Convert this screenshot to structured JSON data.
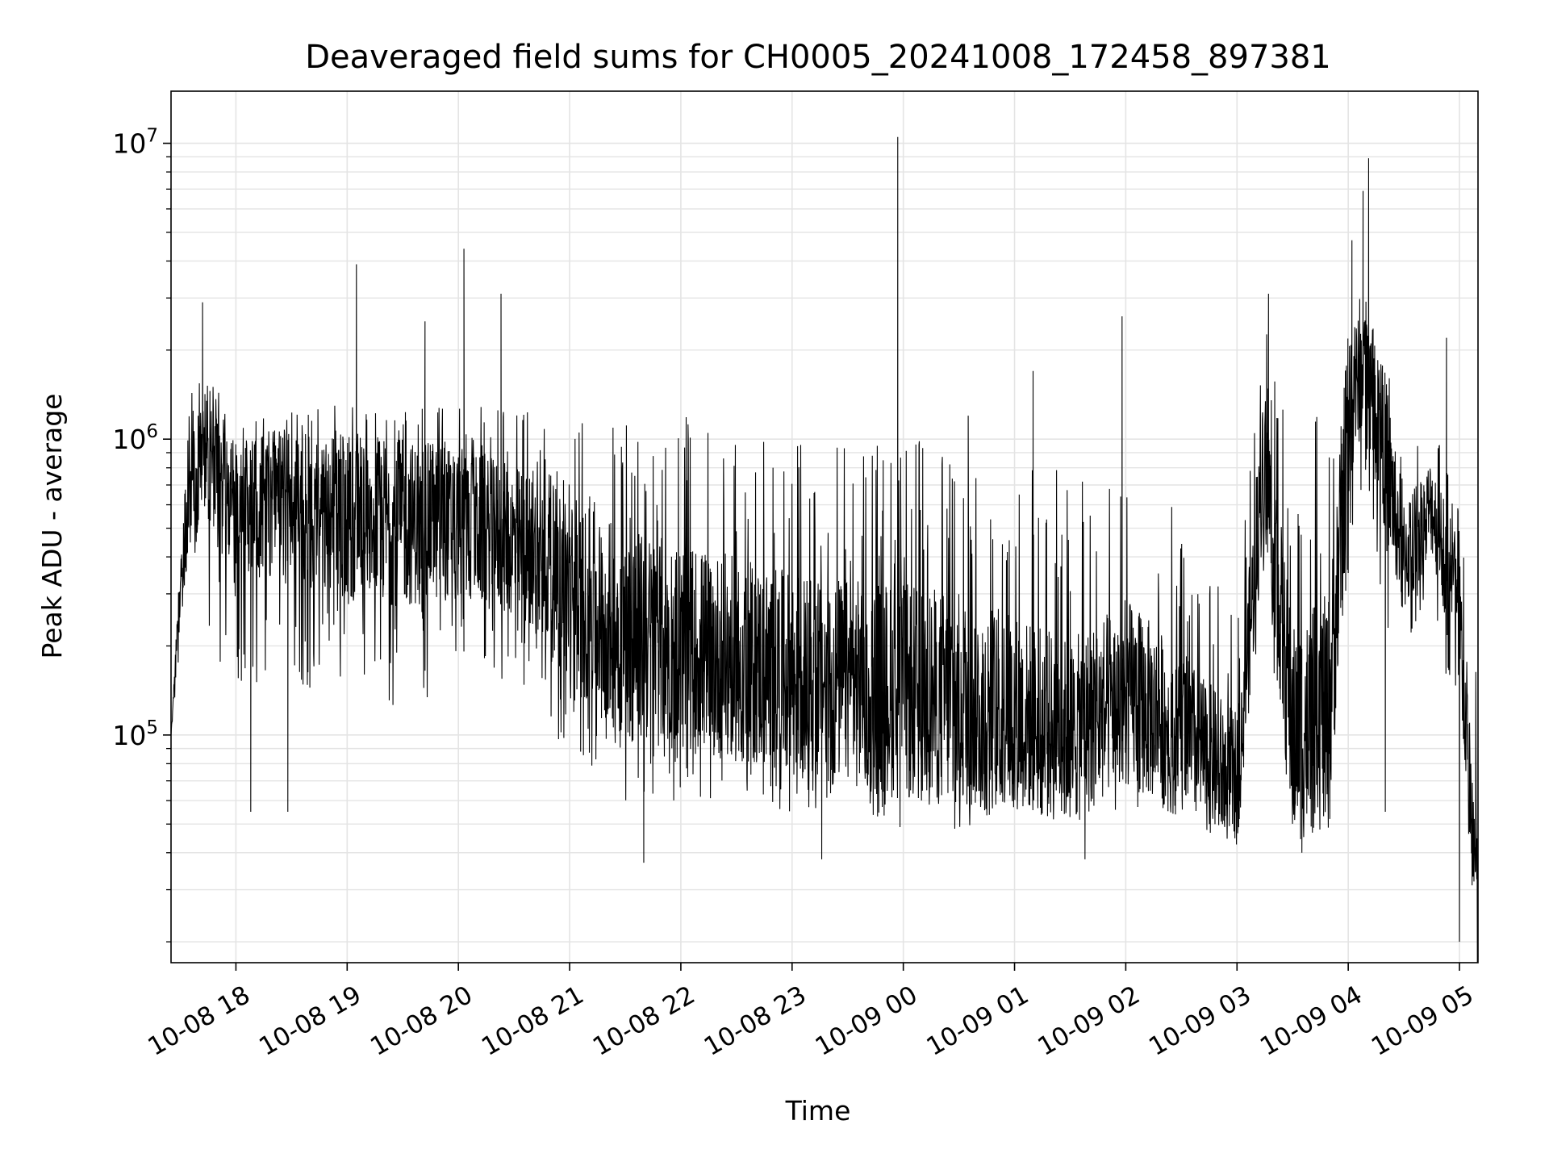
{
  "chart_data": {
    "type": "line",
    "title": "Deaveraged field sums for CH0005_20241008_172458_897381",
    "xlabel": "Time",
    "ylabel": "Peak ADU - average",
    "yscale": "log",
    "ylim": [
      17000,
      15000000
    ],
    "xlim": [
      "2024-10-08 17:25",
      "2024-10-09 05:10"
    ],
    "grid": true,
    "grid_minor": true,
    "line_color": "#000000",
    "x_ticks": [
      {
        "value": "2024-10-08 18:00",
        "label": "10-08 18"
      },
      {
        "value": "2024-10-08 19:00",
        "label": "10-08 19"
      },
      {
        "value": "2024-10-08 20:00",
        "label": "10-08 20"
      },
      {
        "value": "2024-10-08 21:00",
        "label": "10-08 21"
      },
      {
        "value": "2024-10-08 22:00",
        "label": "10-08 22"
      },
      {
        "value": "2024-10-08 23:00",
        "label": "10-08 23"
      },
      {
        "value": "2024-10-09 00:00",
        "label": "10-09 00"
      },
      {
        "value": "2024-10-09 01:00",
        "label": "10-09 01"
      },
      {
        "value": "2024-10-09 02:00",
        "label": "10-09 02"
      },
      {
        "value": "2024-10-09 03:00",
        "label": "10-09 03"
      },
      {
        "value": "2024-10-09 04:00",
        "label": "10-09 04"
      },
      {
        "value": "2024-10-09 05:00",
        "label": "10-09 05"
      }
    ],
    "y_ticks": [
      {
        "value": 100000,
        "base": "10",
        "exp": "5"
      },
      {
        "value": 1000000,
        "base": "10",
        "exp": "6"
      },
      {
        "value": 10000000,
        "base": "10",
        "exp": "7"
      }
    ],
    "series": [
      {
        "x": [
          "2024-10-08 17:25",
          "2024-10-08 17:30",
          "2024-10-08 17:35",
          "2024-10-08 17:40",
          "2024-10-08 17:45",
          "2024-10-08 18:00",
          "2024-10-08 18:15",
          "2024-10-08 18:30",
          "2024-10-08 19:00",
          "2024-10-08 19:30",
          "2024-10-08 20:00",
          "2024-10-08 20:30",
          "2024-10-08 20:45",
          "2024-10-08 21:00",
          "2024-10-08 21:30",
          "2024-10-08 22:00",
          "2024-10-08 22:30",
          "2024-10-08 23:00",
          "2024-10-08 23:30",
          "2024-10-08 23:58",
          "2024-10-09 00:30",
          "2024-10-09 01:00",
          "2024-10-09 01:30",
          "2024-10-09 02:00",
          "2024-10-09 02:30",
          "2024-10-09 03:00",
          "2024-10-09 03:15",
          "2024-10-09 03:30",
          "2024-10-09 03:50",
          "2024-10-09 04:00",
          "2024-10-09 04:10",
          "2024-10-09 04:20",
          "2024-10-09 04:30",
          "2024-10-09 04:45",
          "2024-10-09 05:00",
          "2024-10-09 05:10"
        ],
        "values": [
          100000,
          300000,
          600000,
          800000,
          900000,
          550000,
          600000,
          600000,
          550000,
          520000,
          520000,
          450000,
          400000,
          300000,
          220000,
          200000,
          180000,
          160000,
          150000,
          140000,
          130000,
          120000,
          100000,
          140000,
          100000,
          70000,
          900000,
          100000,
          120000,
          1300000,
          1800000,
          900000,
          400000,
          600000,
          250000,
          25000
        ],
        "high_envelope": [
          100000,
          400000,
          1500000,
          2000000,
          1600000,
          1200000,
          1200000,
          1300000,
          1300000,
          1300000,
          1300000,
          1300000,
          1200000,
          1200000,
          1200000,
          1200000,
          1100000,
          1000000,
          1000000,
          1000000,
          1000000,
          900000,
          800000,
          800000,
          600000,
          300000,
          2500000,
          1000000,
          1500000,
          3500000,
          3000000,
          2000000,
          800000,
          1200000,
          600000,
          200000
        ],
        "low_envelope": [
          100000,
          200000,
          400000,
          300000,
          200000,
          150000,
          150000,
          150000,
          120000,
          120000,
          150000,
          150000,
          120000,
          80000,
          60000,
          60000,
          60000,
          55000,
          50000,
          45000,
          45000,
          55000,
          55000,
          55000,
          55000,
          45000,
          300000,
          45000,
          50000,
          300000,
          800000,
          200000,
          150000,
          300000,
          80000,
          20000
        ],
        "spikes": [
          {
            "x": "2024-10-08 17:42",
            "y": 2900000
          },
          {
            "x": "2024-10-08 18:08",
            "y": 55000
          },
          {
            "x": "2024-10-08 18:28",
            "y": 55000
          },
          {
            "x": "2024-10-08 19:05",
            "y": 3900000
          },
          {
            "x": "2024-10-08 19:42",
            "y": 2500000
          },
          {
            "x": "2024-10-08 20:03",
            "y": 4400000
          },
          {
            "x": "2024-10-08 20:23",
            "y": 3100000
          },
          {
            "x": "2024-10-08 21:40",
            "y": 37000
          },
          {
            "x": "2024-10-08 23:16",
            "y": 38000
          },
          {
            "x": "2024-10-08 23:57",
            "y": 10500000
          },
          {
            "x": "2024-10-09 00:35",
            "y": 1200000
          },
          {
            "x": "2024-10-09 01:10",
            "y": 1700000
          },
          {
            "x": "2024-10-09 01:38",
            "y": 38000
          },
          {
            "x": "2024-10-09 01:58",
            "y": 2600000
          },
          {
            "x": "2024-10-09 03:17",
            "y": 3100000
          },
          {
            "x": "2024-10-09 03:35",
            "y": 40000
          },
          {
            "x": "2024-10-09 04:02",
            "y": 4700000
          },
          {
            "x": "2024-10-09 04:08",
            "y": 6900000
          },
          {
            "x": "2024-10-09 04:11",
            "y": 8900000
          },
          {
            "x": "2024-10-09 04:20",
            "y": 55000
          },
          {
            "x": "2024-10-09 04:53",
            "y": 2200000
          },
          {
            "x": "2024-10-09 05:00",
            "y": 20000
          }
        ]
      }
    ]
  }
}
